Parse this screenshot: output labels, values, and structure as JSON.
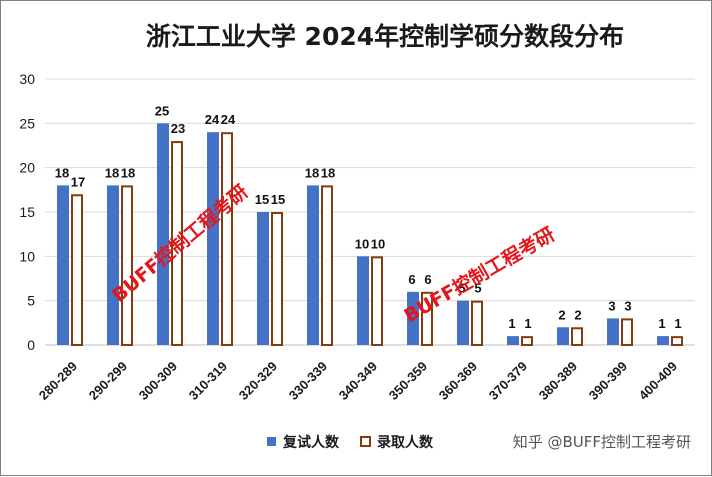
{
  "chart_data": {
    "type": "bar",
    "title": "浙江工业大学 2024年控制学硕分数段分布",
    "categories": [
      "280-289",
      "290-299",
      "300-309",
      "310-319",
      "320-329",
      "330-339",
      "340-349",
      "350-359",
      "360-369",
      "370-379",
      "380-389",
      "390-399",
      "400-409"
    ],
    "series": [
      {
        "name": "复试人数",
        "values": [
          18,
          18,
          25,
          24,
          15,
          18,
          10,
          6,
          5,
          1,
          2,
          3,
          1
        ],
        "color": "#4472c4"
      },
      {
        "name": "录取人数",
        "values": [
          17,
          18,
          23,
          24,
          15,
          18,
          10,
          6,
          5,
          1,
          2,
          3,
          1
        ],
        "color": "#ffffff",
        "stroke": "#843c0c"
      }
    ],
    "ylim": [
      0,
      30
    ],
    "yticks": [
      0,
      5,
      10,
      15,
      20,
      25,
      30
    ],
    "grid": true,
    "legend": "bottom-right",
    "xlabel": "",
    "ylabel": ""
  },
  "watermarks": [
    "BUFF控制工程考研",
    "BUFF控制工程考研"
  ],
  "credit": "知乎 @BUFF控制工程考研"
}
